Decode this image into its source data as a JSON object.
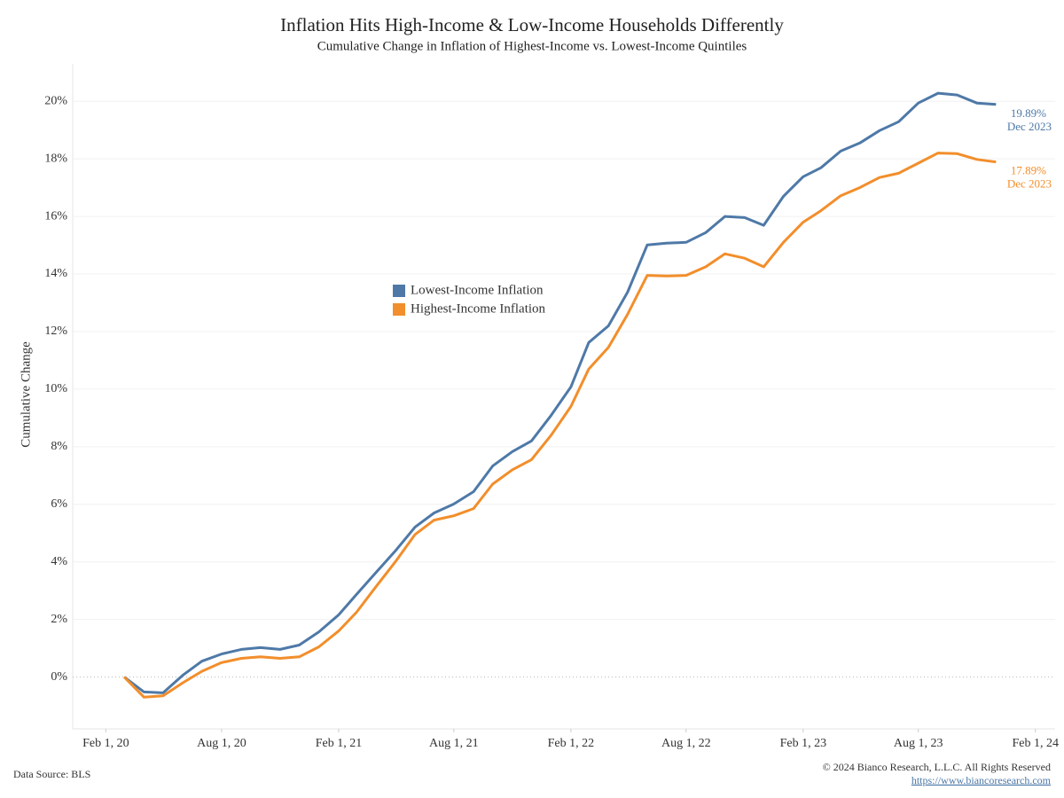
{
  "chart_data": {
    "type": "line",
    "title": "Inflation Hits High-Income & Low-Income Households Differently",
    "subtitle": "Cumulative Change in Inflation of Highest-Income vs. Lowest-Income Quintiles",
    "y_label": "Cumulative Change",
    "x": [
      "2020-03-01",
      "2020-04-01",
      "2020-05-01",
      "2020-06-01",
      "2020-07-01",
      "2020-08-01",
      "2020-09-01",
      "2020-10-01",
      "2020-11-01",
      "2020-12-01",
      "2021-01-01",
      "2021-02-01",
      "2021-03-01",
      "2021-04-01",
      "2021-05-01",
      "2021-06-01",
      "2021-07-01",
      "2021-08-01",
      "2021-09-01",
      "2021-10-01",
      "2021-11-01",
      "2021-12-01",
      "2022-01-01",
      "2022-02-01",
      "2022-03-01",
      "2022-04-01",
      "2022-05-01",
      "2022-06-01",
      "2022-07-01",
      "2022-08-01",
      "2022-09-01",
      "2022-10-01",
      "2022-11-01",
      "2022-12-01",
      "2023-01-01",
      "2023-02-01",
      "2023-03-01",
      "2023-04-01",
      "2023-05-01",
      "2023-06-01",
      "2023-07-01",
      "2023-08-01",
      "2023-09-01",
      "2023-10-01",
      "2023-11-01",
      "2023-12-01"
    ],
    "series": [
      {
        "name": "Lowest-Income Inflation",
        "color": "#4e79a7",
        "end_label": "19.89%",
        "end_date": "Dec 2023",
        "values": [
          0,
          -0.52,
          -0.55,
          0.06,
          0.55,
          0.8,
          0.96,
          1.02,
          0.96,
          1.11,
          1.57,
          2.16,
          2.87,
          3.64,
          4.38,
          5.21,
          5.7,
          6.01,
          6.44,
          7.33,
          7.83,
          8.2,
          9.09,
          10.08,
          11.62,
          12.2,
          13.37,
          15.01,
          15.07,
          15.1,
          15.44,
          16.0,
          15.96,
          15.69,
          16.7,
          17.38,
          17.69,
          18.27,
          18.55,
          18.98,
          19.29,
          19.94,
          20.28,
          20.22,
          19.94,
          19.89
        ]
      },
      {
        "name": "Highest-Income Inflation",
        "color": "#f28e2b",
        "end_label": "17.89%",
        "end_date": "Dec 2023",
        "values": [
          0,
          -0.7,
          -0.65,
          -0.2,
          0.2,
          0.5,
          0.65,
          0.7,
          0.65,
          0.7,
          1.05,
          1.6,
          2.25,
          3.15,
          4.0,
          4.95,
          5.45,
          5.6,
          5.85,
          6.7,
          7.2,
          7.55,
          8.4,
          9.4,
          10.7,
          11.45,
          12.6,
          13.95,
          13.93,
          13.95,
          14.25,
          14.7,
          14.55,
          14.25,
          15.1,
          15.8,
          16.2,
          16.72,
          17.0,
          17.35,
          17.5,
          17.85,
          18.2,
          18.18,
          17.98,
          17.89
        ]
      }
    ],
    "xlim": [
      "2019-12-11",
      "2024-03-03"
    ],
    "xticks": [
      {
        "value": "2020-02-01",
        "label": "Feb 1, 20"
      },
      {
        "value": "2020-08-01",
        "label": "Aug 1, 20"
      },
      {
        "value": "2021-02-01",
        "label": "Feb 1, 21"
      },
      {
        "value": "2021-08-01",
        "label": "Aug 1, 21"
      },
      {
        "value": "2022-02-01",
        "label": "Feb 1, 22"
      },
      {
        "value": "2022-08-01",
        "label": "Aug 1, 22"
      },
      {
        "value": "2023-02-01",
        "label": "Feb 1, 23"
      },
      {
        "value": "2023-08-01",
        "label": "Aug 1, 23"
      },
      {
        "value": "2024-02-01",
        "label": "Feb 1, 24"
      }
    ],
    "ylim": [
      -1.8,
      21.3
    ],
    "yticks": [
      {
        "value": 0,
        "label": "0%"
      },
      {
        "value": 2,
        "label": "2%"
      },
      {
        "value": 4,
        "label": "4%"
      },
      {
        "value": 6,
        "label": "6%"
      },
      {
        "value": 8,
        "label": "8%"
      },
      {
        "value": 10,
        "label": "10%"
      },
      {
        "value": 12,
        "label": "12%"
      },
      {
        "value": 14,
        "label": "14%"
      },
      {
        "value": 16,
        "label": "16%"
      },
      {
        "value": 18,
        "label": "18%"
      },
      {
        "value": 20,
        "label": "20%"
      }
    ],
    "grid": true,
    "source": "Data Source: BLS",
    "copyright": "© 2024 Bianco Research, L.L.C. All Rights Reserved",
    "url": "https://www.biancoresearch.com"
  }
}
